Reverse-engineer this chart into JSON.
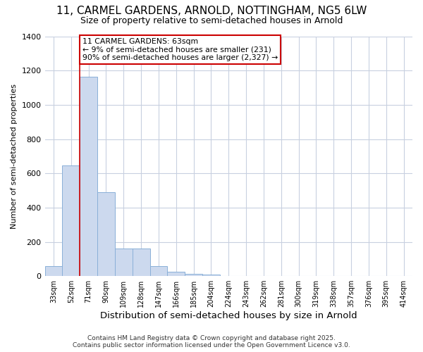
{
  "title_line1": "11, CARMEL GARDENS, ARNOLD, NOTTINGHAM, NG5 6LW",
  "title_line2": "Size of property relative to semi-detached houses in Arnold",
  "xlabel": "Distribution of semi-detached houses by size in Arnold",
  "ylabel": "Number of semi-detached properties",
  "footnote": "Contains HM Land Registry data © Crown copyright and database right 2025.\nContains public sector information licensed under the Open Government Licence v3.0.",
  "bin_labels": [
    "33sqm",
    "52sqm",
    "71sqm",
    "90sqm",
    "109sqm",
    "128sqm",
    "147sqm",
    "166sqm",
    "185sqm",
    "204sqm",
    "224sqm",
    "243sqm",
    "262sqm",
    "281sqm",
    "300sqm",
    "319sqm",
    "338sqm",
    "357sqm",
    "376sqm",
    "395sqm",
    "414sqm"
  ],
  "bar_values": [
    60,
    645,
    1165,
    490,
    160,
    160,
    60,
    27,
    15,
    10,
    0,
    0,
    0,
    0,
    0,
    0,
    0,
    0,
    0,
    0,
    0
  ],
  "bar_color": "#ccd9ee",
  "bar_edge_color": "#8ab0d8",
  "grid_color": "#c8d0e0",
  "background_color": "#ffffff",
  "plot_bg_color": "#ffffff",
  "vline_color": "#cc0000",
  "annotation_text": "11 CARMEL GARDENS: 63sqm\n← 9% of semi-detached houses are smaller (231)\n90% of semi-detached houses are larger (2,327) →",
  "annotation_box_color": "#cc0000",
  "ylim": [
    0,
    1400
  ],
  "yticks": [
    0,
    200,
    400,
    600,
    800,
    1000,
    1200,
    1400
  ],
  "title_fontsize": 11,
  "subtitle_fontsize": 9
}
